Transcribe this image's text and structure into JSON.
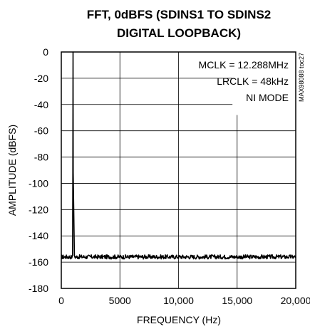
{
  "chart_data": {
    "type": "line",
    "title_lines": [
      "FFT, 0dBFS (SDINS1 TO SDINS2",
      "DIGITAL LOOPBACK)"
    ],
    "xlabel": "FREQUENCY (Hz)",
    "ylabel": "AMPLITUDE (dBFS)",
    "xlim": [
      0,
      20000
    ],
    "ylim": [
      -180,
      0
    ],
    "x_ticks": [
      0,
      5000,
      10000,
      15000,
      20000
    ],
    "x_tick_labels": [
      "0",
      "5000",
      "10,000",
      "15,000",
      "20,000"
    ],
    "y_ticks": [
      0,
      -20,
      -40,
      -60,
      -80,
      -100,
      -120,
      -140,
      -160,
      -180
    ],
    "y_tick_labels": [
      "0",
      "-20",
      "-40",
      "-60",
      "-80",
      "-100",
      "-120",
      "-140",
      "-160",
      "-180"
    ],
    "grid": true,
    "annotations": [
      "MCLK = 12.288MHz",
      "LRCLK = 48kHz",
      "NI MODE"
    ],
    "side_label": "MAX98088 toc27",
    "series": [
      {
        "color": "#000000",
        "signal_frequency_hz": 1000,
        "signal_level_dbfs": 0,
        "noise_floor_dbfs": -156
      }
    ]
  }
}
